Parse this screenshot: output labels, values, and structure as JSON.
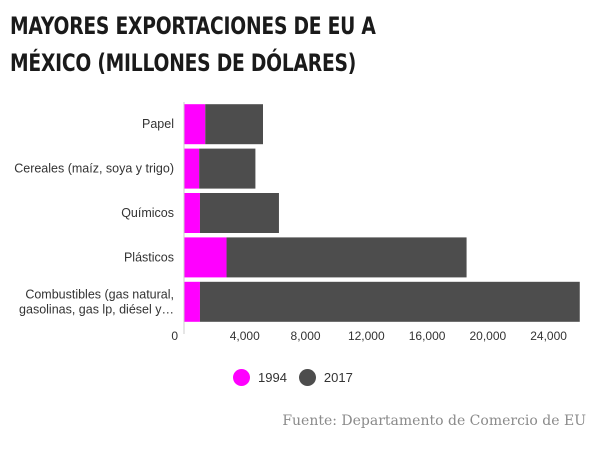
{
  "chart_data": {
    "type": "bar",
    "orientation": "horizontal",
    "stacked": true,
    "title": "MAYORES EXPORTACIONES DE EU A MÉXICO (MILLONES DE DÓLARES)",
    "categories": [
      [
        "Papel"
      ],
      [
        "Cereales (maíz, soya y trigo)"
      ],
      [
        "Químicos"
      ],
      [
        "Plásticos"
      ],
      [
        "Combustibles (gas natural,",
        "gasolinas, gas lp, diésel y…"
      ]
    ],
    "series": [
      {
        "name": "1994",
        "color": "#ff00ff",
        "values": [
          1400,
          1000,
          1050,
          2800,
          1050
        ]
      },
      {
        "name": "2017",
        "color": "#4d4d4d",
        "values": [
          3800,
          3700,
          5200,
          15800,
          25000
        ]
      }
    ],
    "xlim": [
      0,
      26000
    ],
    "xticks": [
      0,
      4000,
      8000,
      12000,
      16000,
      20000,
      24000
    ],
    "xtick_labels": [
      "0",
      "4,000",
      "8,000",
      "12,000",
      "16,000",
      "20,000",
      "24,000"
    ],
    "legend_position": "bottom",
    "source": "Fuente: Departamento de Comercio de EU"
  }
}
